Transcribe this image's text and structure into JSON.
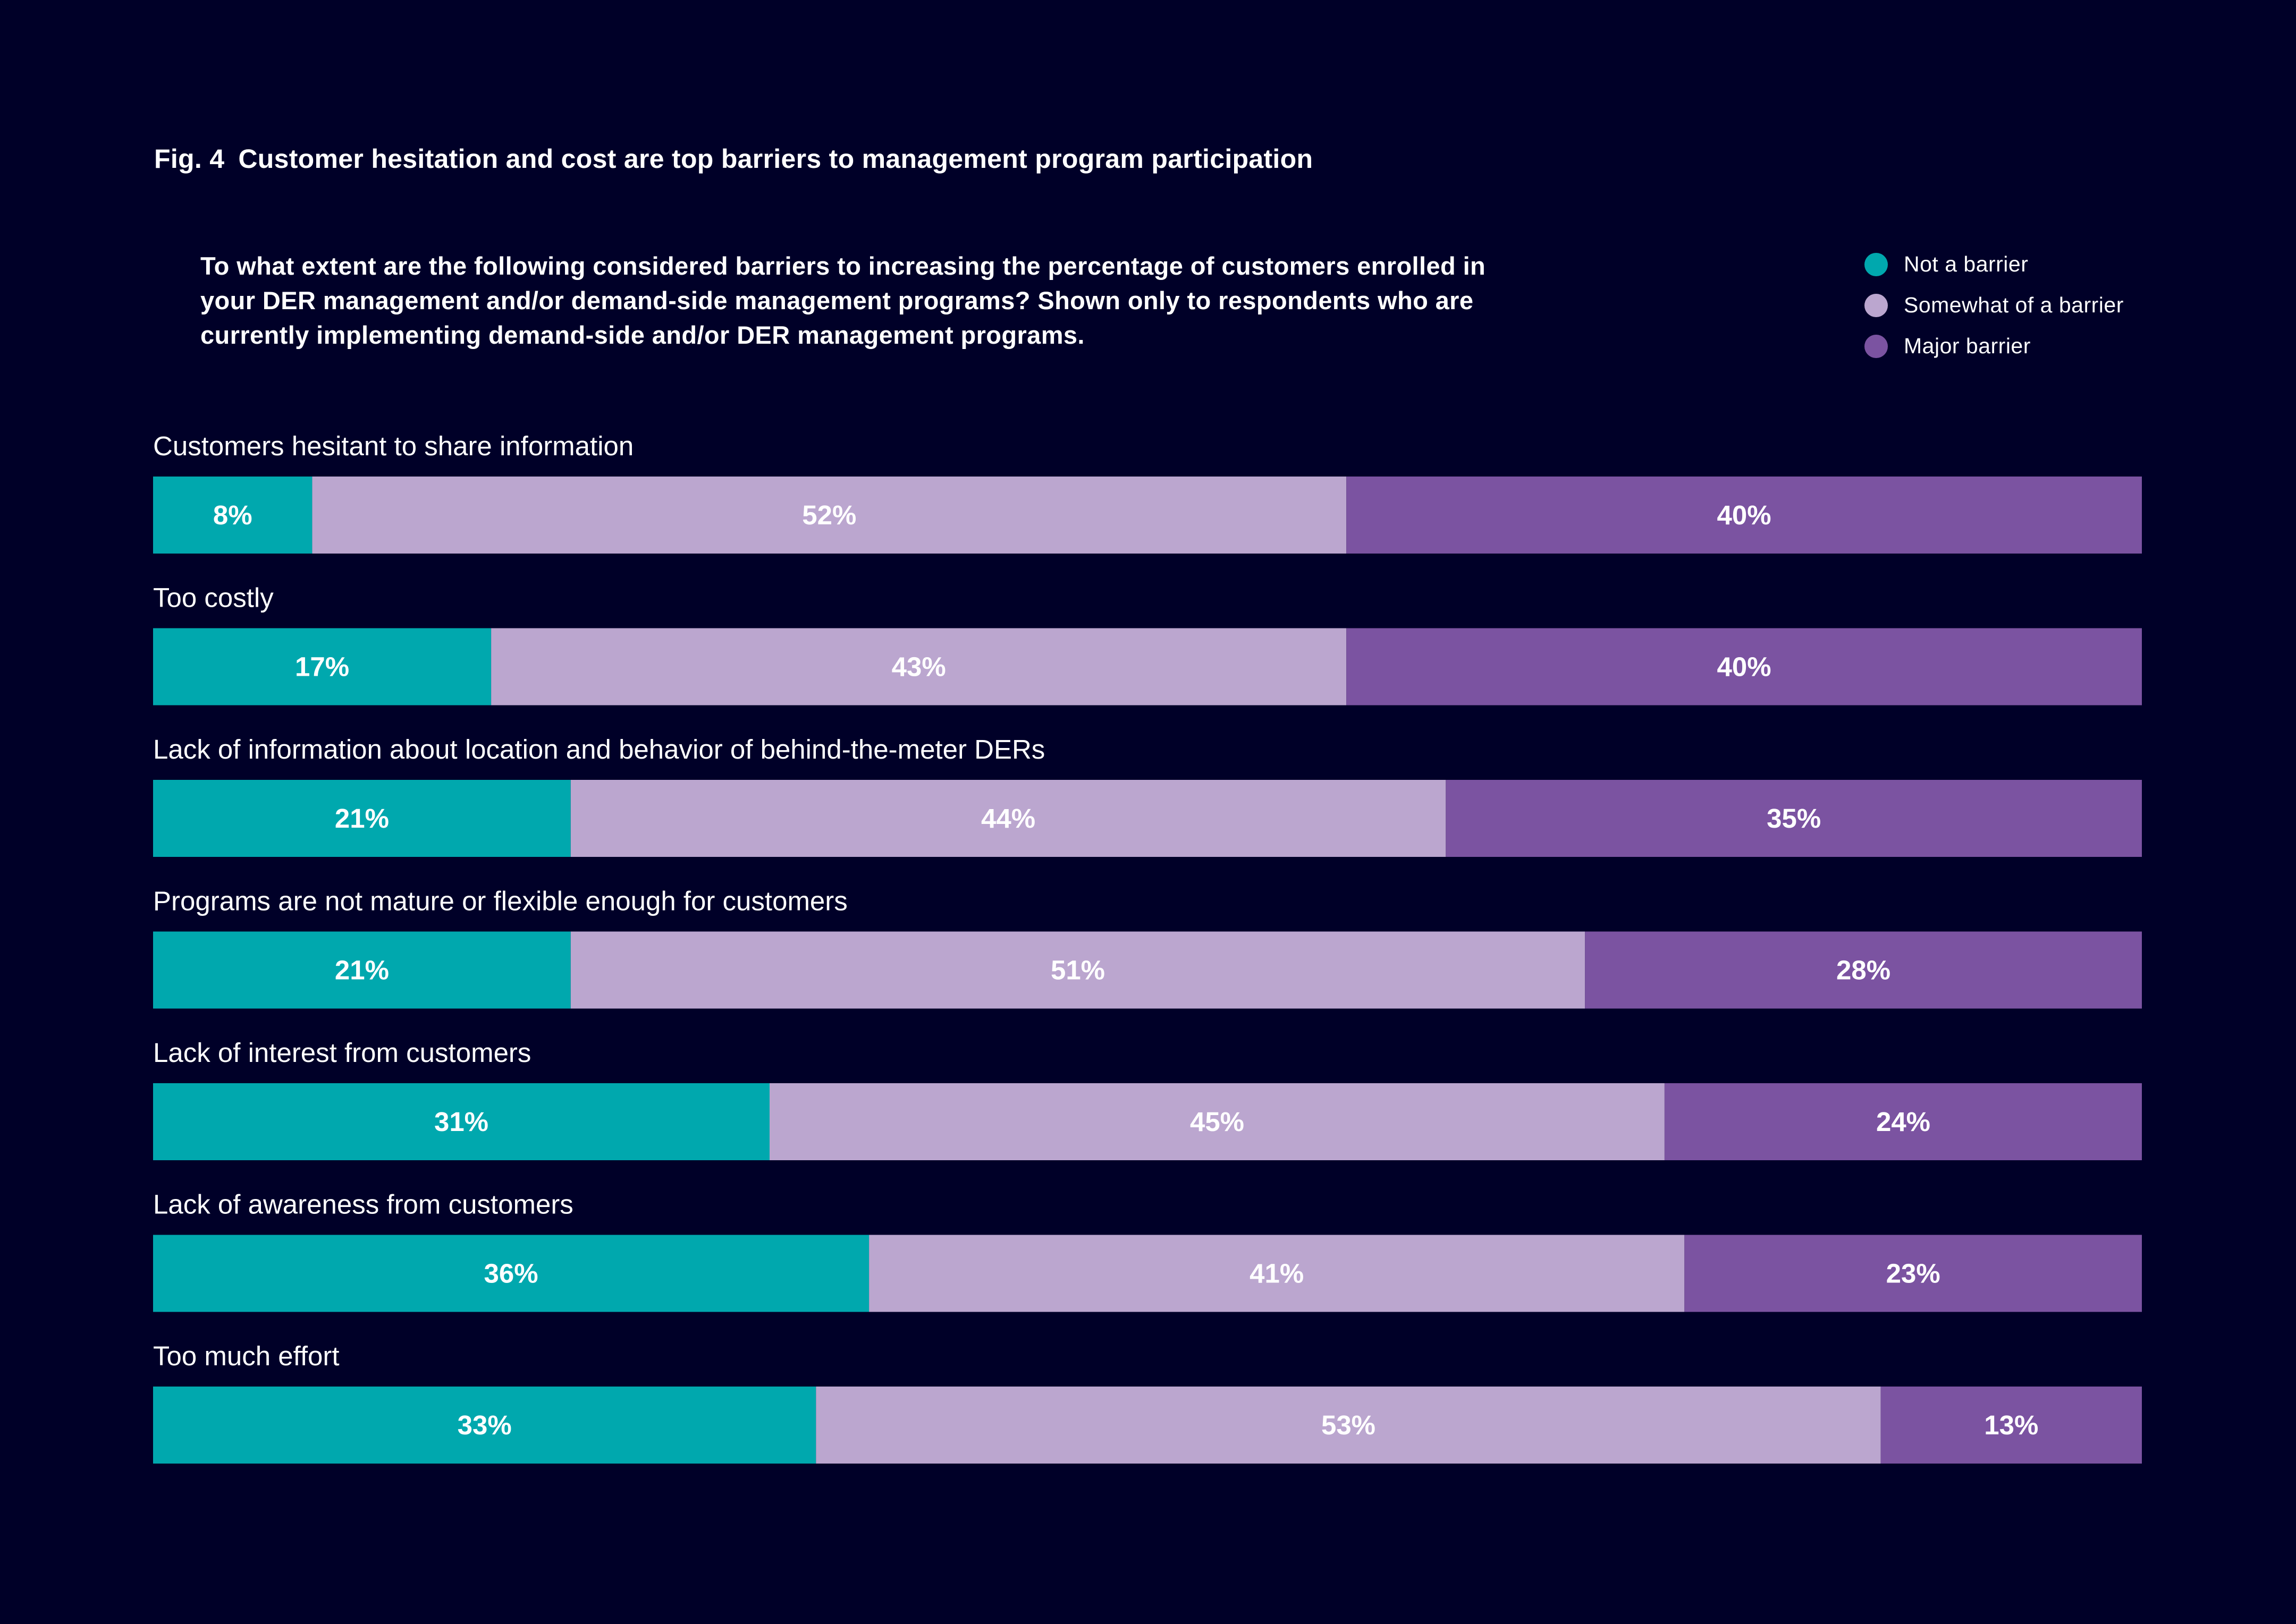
{
  "figure": {
    "number": "Fig. 4",
    "title": "Customer hesitation and cost are top barriers to management program participation",
    "question": "To what extent are the following considered barriers to increasing the percentage of customers enrolled in your DER management and/or demand-side management programs? Shown only to respondents who are currently implementing demand-side and/or DER management programs."
  },
  "colors": {
    "background": "#000028",
    "not_a_barrier": "#00A8AE",
    "somewhat_of_a_barrier": "#BBA6CF",
    "major_barrier": "#7B53A1",
    "text": "#FFFFFF"
  },
  "chart_data": {
    "type": "bar",
    "orientation": "horizontal",
    "stacked": true,
    "normalized_to": 100,
    "unit": "%",
    "legend_position": "top-right",
    "grid": false,
    "categories": [
      "Customers hesitant to share information",
      "Too costly",
      "Lack of information about location and behavior of behind-the-meter DERs",
      "Programs are not mature or flexible enough for customers",
      "Lack of interest from customers",
      "Lack of awareness from customers",
      "Too much effort"
    ],
    "series": [
      {
        "name": "Not a barrier",
        "color": "#00A8AE",
        "values": [
          8,
          17,
          21,
          21,
          31,
          36,
          33
        ]
      },
      {
        "name": "Somewhat of a barrier",
        "color": "#BBA6CF",
        "values": [
          52,
          43,
          44,
          51,
          45,
          41,
          53
        ]
      },
      {
        "name": "Major barrier",
        "color": "#7B53A1",
        "values": [
          40,
          40,
          35,
          28,
          24,
          23,
          13
        ]
      }
    ]
  }
}
